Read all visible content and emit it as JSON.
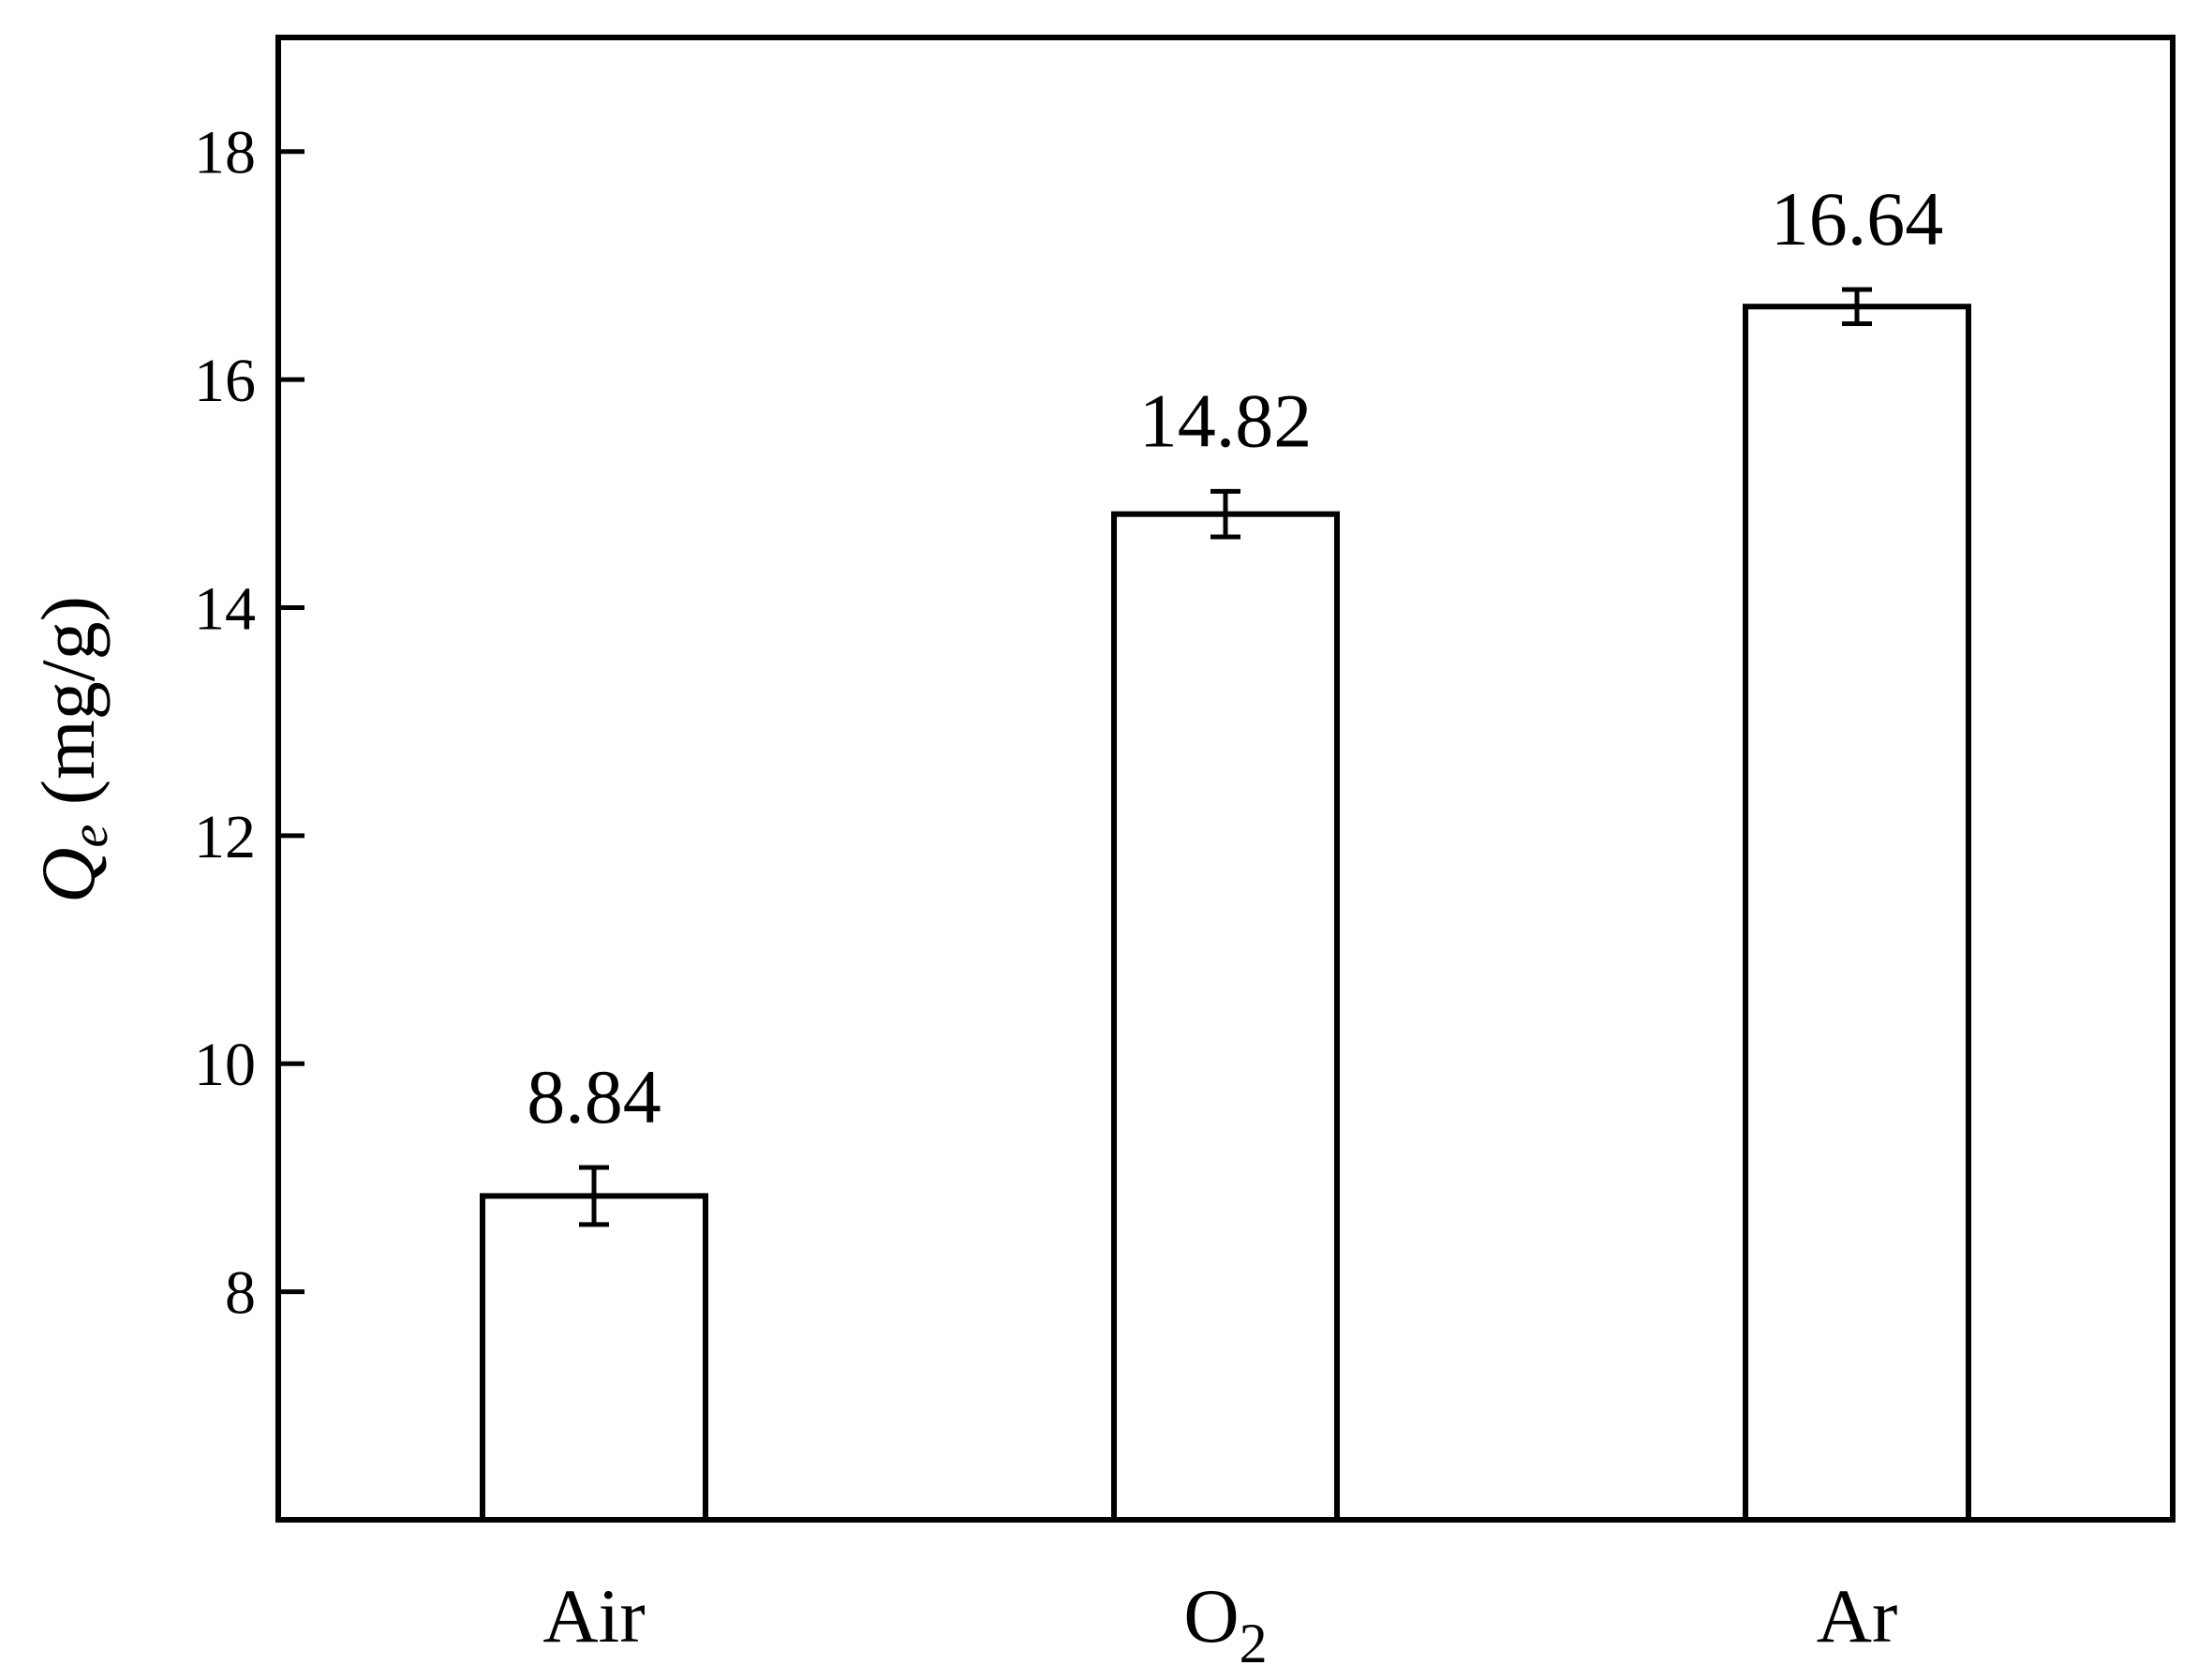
{
  "chart_data": {
    "type": "bar",
    "categories": [
      "Air",
      "O2",
      "Ar"
    ],
    "category_display": [
      {
        "main": "Air",
        "sub": ""
      },
      {
        "main": "O",
        "sub": "2"
      },
      {
        "main": "Ar",
        "sub": ""
      }
    ],
    "values": [
      8.84,
      14.82,
      16.64
    ],
    "errors": [
      0.25,
      0.2,
      0.15
    ],
    "value_labels": [
      "8.84",
      "14.82",
      "16.64"
    ],
    "ylabel": {
      "symbol": "Q",
      "subscript": "e",
      "unit": " (mg/g)"
    },
    "ylim": [
      6,
      19
    ],
    "yticks": [
      8,
      10,
      12,
      14,
      16,
      18
    ],
    "grid": false,
    "legend": "none",
    "bar_fill": "#ffffff",
    "stroke_color": "#000000"
  }
}
